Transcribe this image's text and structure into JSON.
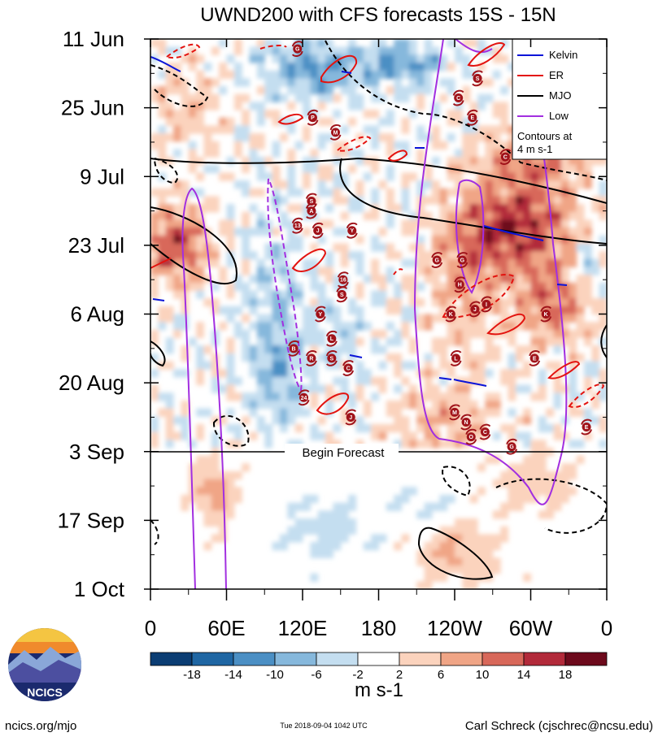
{
  "chart_data": {
    "type": "heatmap",
    "title": "UWND200 with CFS forecasts  15S - 15N",
    "x_tick_labels": [
      "0",
      "60E",
      "120E",
      "180",
      "120W",
      "60W",
      "0"
    ],
    "x_tick_lon": [
      0,
      60,
      120,
      180,
      240,
      300,
      360
    ],
    "y_tick_labels": [
      "11 Jun",
      "25 Jun",
      "9 Jul",
      "23 Jul",
      "6 Aug",
      "20 Aug",
      "3 Sep",
      "17 Sep",
      "1 Oct"
    ],
    "y_tick_day": [
      0,
      14,
      28,
      42,
      56,
      70,
      84,
      98,
      112
    ],
    "forecast_start_day": 84,
    "forecast_label": "Begin Forecast",
    "colorbar": {
      "tick_labels": [
        "-18",
        "-14",
        "-10",
        "-6",
        "-2",
        "2",
        "6",
        "10",
        "14",
        "18"
      ],
      "colors": [
        "#0b3d73",
        "#1f66a3",
        "#4b8fc4",
        "#86b8dc",
        "#c4def0",
        "#ffffff",
        "#fbd3bd",
        "#f0a586",
        "#d8685a",
        "#b22a3a",
        "#6d0a1c"
      ],
      "units": "m s-1"
    },
    "legend": {
      "items": [
        {
          "label": "Kelvin",
          "color": "#0a14d8",
          "dash": false
        },
        {
          "label": "ER",
          "color": "#e3130f",
          "dash": false
        },
        {
          "label": "MJO",
          "color": "#000000",
          "dash": false
        },
        {
          "label": "Low",
          "color": "#a22fe0",
          "dash": false
        }
      ],
      "note_line1": "Contours at",
      "note_line2": "4 m s-1"
    },
    "storms": [
      {
        "id": "G",
        "lon": 116,
        "day": 2
      },
      {
        "id": "S",
        "lon": 258,
        "day": 8
      },
      {
        "id": "P",
        "lon": 128,
        "day": 16
      },
      {
        "id": "C",
        "lon": 243,
        "day": 12
      },
      {
        "id": "M",
        "lon": 146,
        "day": 19
      },
      {
        "id": "E",
        "lon": 254,
        "day": 16
      },
      {
        "id": "C",
        "lon": 280,
        "day": 24
      },
      {
        "id": "S",
        "lon": 127,
        "day": 33
      },
      {
        "id": "A",
        "lon": 127,
        "day": 35
      },
      {
        "id": "13",
        "lon": 116,
        "day": 38
      },
      {
        "id": "J",
        "lon": 132,
        "day": 39
      },
      {
        "id": "Y",
        "lon": 159,
        "day": 39
      },
      {
        "id": "G",
        "lon": 226,
        "day": 45
      },
      {
        "id": "G",
        "lon": 246,
        "day": 45
      },
      {
        "id": "16",
        "lon": 152,
        "day": 49
      },
      {
        "id": "S",
        "lon": 151,
        "day": 52
      },
      {
        "id": "H",
        "lon": 244,
        "day": 50
      },
      {
        "id": "K",
        "lon": 237,
        "day": 56
      },
      {
        "id": "J",
        "lon": 256,
        "day": 55
      },
      {
        "id": "I",
        "lon": 265,
        "day": 54
      },
      {
        "id": "K",
        "lon": 312,
        "day": 56
      },
      {
        "id": "Y",
        "lon": 134,
        "day": 56
      },
      {
        "id": "L",
        "lon": 143,
        "day": 61
      },
      {
        "id": "B",
        "lon": 113,
        "day": 63
      },
      {
        "id": "R",
        "lon": 127,
        "day": 65
      },
      {
        "id": "S",
        "lon": 143,
        "day": 65
      },
      {
        "id": "C",
        "lon": 156,
        "day": 67
      },
      {
        "id": "L",
        "lon": 241,
        "day": 65
      },
      {
        "id": "E",
        "lon": 303,
        "day": 65
      },
      {
        "id": "24",
        "lon": 121,
        "day": 73
      },
      {
        "id": "J",
        "lon": 158,
        "day": 77
      },
      {
        "id": "M",
        "lon": 240,
        "day": 76
      },
      {
        "id": "N",
        "lon": 249,
        "day": 78
      },
      {
        "id": "C",
        "lon": 264,
        "day": 80
      },
      {
        "id": "O",
        "lon": 253,
        "day": 81
      },
      {
        "id": "G",
        "lon": 285,
        "day": 83
      },
      {
        "id": "E",
        "lon": 344,
        "day": 79
      }
    ],
    "x_range_deg": [
      0,
      360
    ],
    "y_range_days": [
      0,
      112
    ]
  },
  "footer": {
    "left": "ncics.org/mjo",
    "center": "Tue 2018-09-04 1042 UTC",
    "right": "Carl Schreck (cjschrec@ncsu.edu)",
    "logo_text": "NCICS"
  }
}
